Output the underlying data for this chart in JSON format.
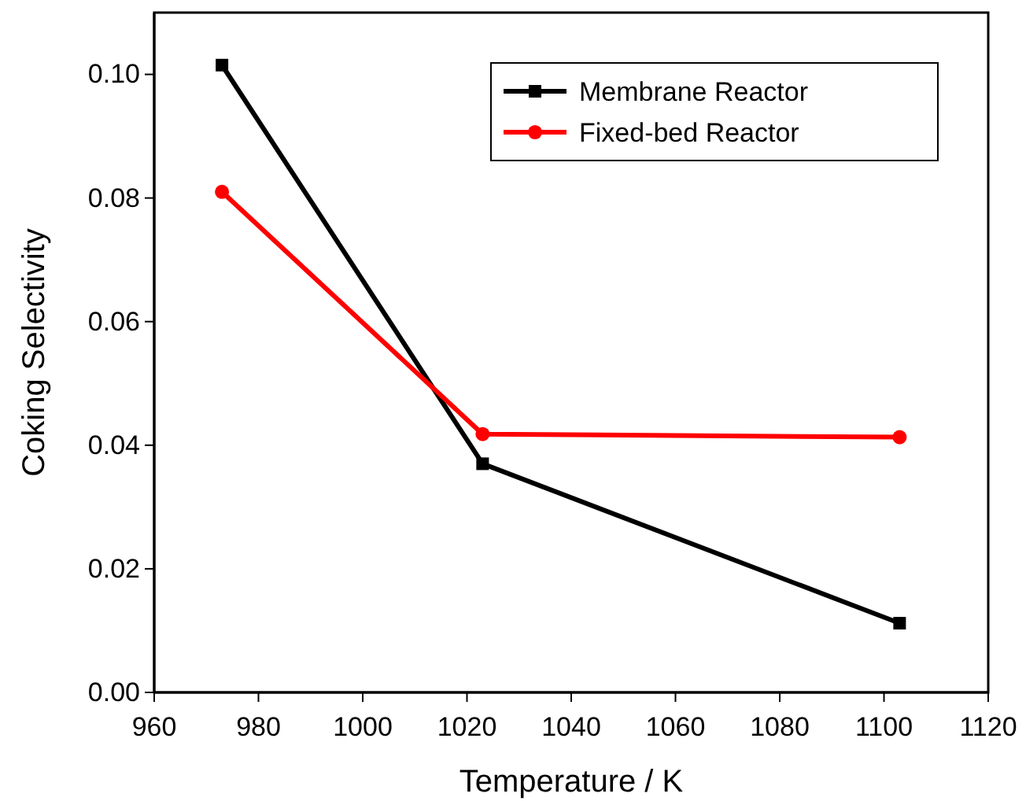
{
  "chart_data": {
    "type": "line",
    "xlabel": "Temperature / K",
    "ylabel": "Coking Selectivity",
    "x": [
      973,
      1023,
      1103
    ],
    "series": [
      {
        "name": "Membrane Reactor",
        "color": "#000000",
        "marker": "square",
        "values": [
          0.1015,
          0.037,
          0.0112
        ]
      },
      {
        "name": "Fixed-bed Reactor",
        "color": "#ff0000",
        "marker": "circle",
        "values": [
          0.081,
          0.0418,
          0.0413
        ]
      }
    ],
    "xlim": [
      960,
      1120
    ],
    "xticks": [
      960,
      980,
      1000,
      1020,
      1040,
      1060,
      1080,
      1100,
      1120
    ],
    "ylim": [
      0,
      0.11
    ],
    "yticks": [
      {
        "value": 0,
        "label": "0.00"
      },
      {
        "value": 0.02,
        "label": "0.02"
      },
      {
        "value": 0.04,
        "label": "0.04"
      },
      {
        "value": 0.06,
        "label": "0.06"
      },
      {
        "value": 0.08,
        "label": "0.08"
      },
      {
        "value": 0.1,
        "label": "0.10"
      }
    ],
    "legend": "top right",
    "grid": false,
    "line_style": "solid"
  }
}
